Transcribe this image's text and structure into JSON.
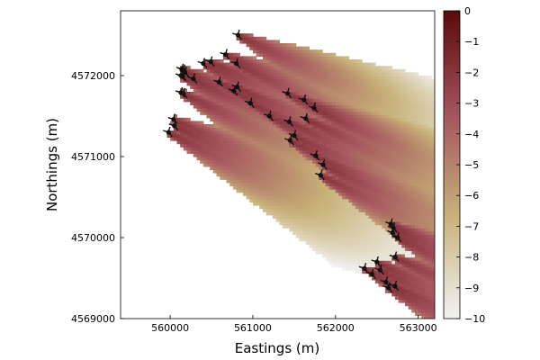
{
  "chart_data": {
    "type": "heatmap",
    "xlabel": "Eastings (m)",
    "ylabel": "Northings (m)",
    "xlim": [
      559400,
      563200
    ],
    "ylim": [
      4569000,
      4572800
    ],
    "xticks": [
      560000,
      561000,
      562000,
      563000
    ],
    "yticks": [
      4569000,
      4570000,
      4571000,
      4572000
    ],
    "grid": false,
    "colorbar": {
      "range": [
        -10,
        0
      ],
      "ticks": [
        0,
        -1,
        -2,
        -3,
        -4,
        -5,
        -6,
        -7,
        -8,
        -9,
        -10
      ],
      "tick_labels": [
        "0",
        "−1",
        "−2",
        "−3",
        "−4",
        "−5",
        "−6",
        "−7",
        "−8",
        "−9",
        "−10"
      ],
      "colormap": [
        "#f2f2f2",
        "#c8b279",
        "#a4535d",
        "#5a0a0a"
      ]
    },
    "wake_direction_deg": -26,
    "turbines": [
      [
        559980,
        4571300
      ],
      [
        560050,
        4571380
      ],
      [
        560040,
        4571460
      ],
      [
        560160,
        4571780
      ],
      [
        560130,
        4571790
      ],
      [
        560280,
        4571960
      ],
      [
        560150,
        4571990
      ],
      [
        560180,
        4572040
      ],
      [
        560140,
        4572080
      ],
      [
        560130,
        4572000
      ],
      [
        560160,
        4572070
      ],
      [
        560400,
        4572150
      ],
      [
        560490,
        4572170
      ],
      [
        560670,
        4572260
      ],
      [
        560800,
        4572150
      ],
      [
        560820,
        4572500
      ],
      [
        560590,
        4571920
      ],
      [
        560810,
        4571860
      ],
      [
        560770,
        4571810
      ],
      [
        560970,
        4571660
      ],
      [
        561200,
        4571500
      ],
      [
        561420,
        4571780
      ],
      [
        561620,
        4571700
      ],
      [
        561740,
        4571600
      ],
      [
        561640,
        4571470
      ],
      [
        561440,
        4571430
      ],
      [
        561500,
        4571260
      ],
      [
        561450,
        4571200
      ],
      [
        561760,
        4571010
      ],
      [
        561850,
        4570900
      ],
      [
        561820,
        4570770
      ],
      [
        562670,
        4570170
      ],
      [
        562700,
        4570120
      ],
      [
        562690,
        4570060
      ],
      [
        562750,
        4570000
      ],
      [
        562720,
        4569760
      ],
      [
        562500,
        4569700
      ],
      [
        562350,
        4569620
      ],
      [
        562540,
        4569600
      ],
      [
        562440,
        4569550
      ],
      [
        562610,
        4569450
      ],
      [
        562720,
        4569400
      ],
      [
        562640,
        4569380
      ]
    ]
  }
}
